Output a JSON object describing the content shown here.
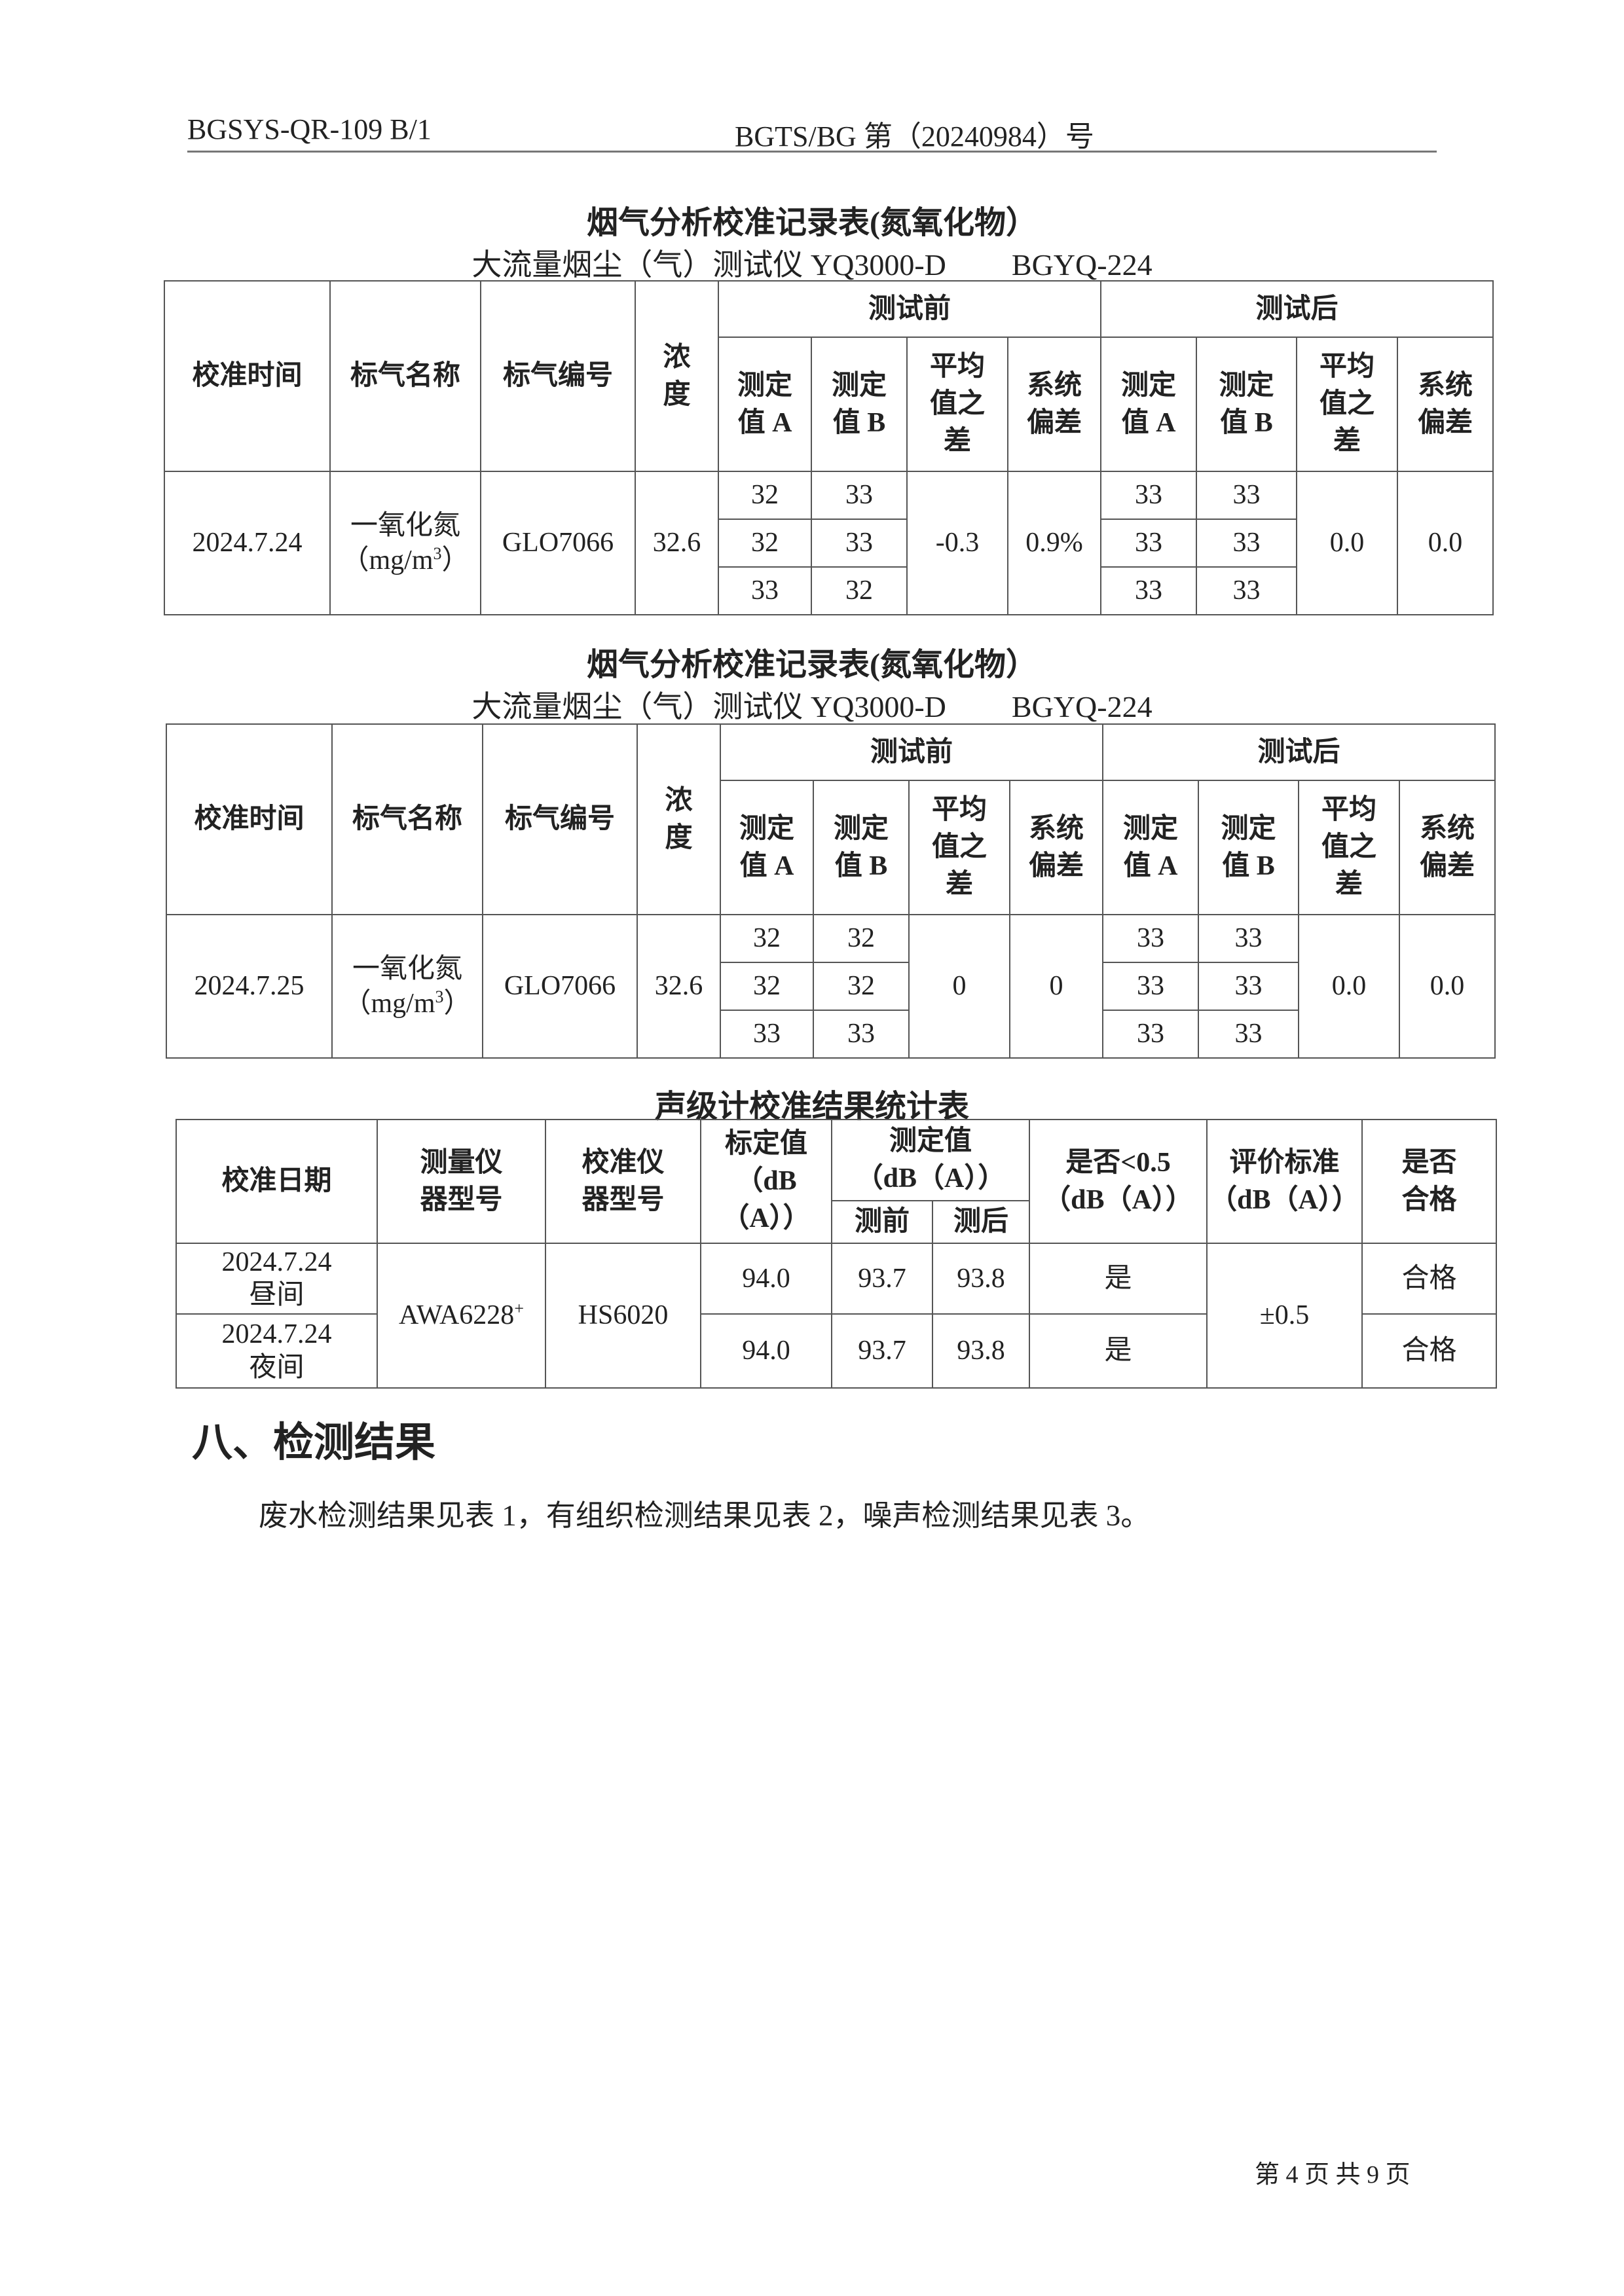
{
  "header": {
    "form_code": "BGSYS-QR-109 B/1",
    "report_no": "BGTS/BG 第（20240984）号"
  },
  "calibration_tables": [
    {
      "title": "烟气分析校准记录表(氮氧化物）",
      "instrument": "大流量烟尘（气）测试仪 YQ3000-D",
      "instrument_id": "BGYQ-224",
      "headers": {
        "time": "校准时间",
        "gas_name": "标气名称",
        "gas_code": "标气编号",
        "conc": "浓\n度",
        "before": "测试前",
        "after": "测试后",
        "a": "测定\n值 A",
        "b": "测定\n值 B",
        "avg_diff": "平均\n值之\n差",
        "bias": "系统\n偏差"
      },
      "row": {
        "date": "2024.7.24",
        "gas_name": "一氧化氮",
        "gas_unit": "（mg/m",
        "unit_sup": "3",
        "unit_close": "）",
        "gas_code": "GLO7066",
        "conc": "32.6",
        "before_a": [
          "32",
          "32",
          "33"
        ],
        "before_b": [
          "33",
          "33",
          "32"
        ],
        "before_avg_diff": "-0.3",
        "before_bias": "0.9%",
        "after_a": [
          "33",
          "33",
          "33"
        ],
        "after_b": [
          "33",
          "33",
          "33"
        ],
        "after_avg_diff": "0.0",
        "after_bias": "0.0"
      }
    },
    {
      "title": "烟气分析校准记录表(氮氧化物）",
      "instrument": "大流量烟尘（气）测试仪 YQ3000-D",
      "instrument_id": "BGYQ-224",
      "headers": {
        "time": "校准时间",
        "gas_name": "标气名称",
        "gas_code": "标气编号",
        "conc": "浓\n度",
        "before": "测试前",
        "after": "测试后",
        "a": "测定\n值 A",
        "b": "测定\n值 B",
        "avg_diff": "平均\n值之\n差",
        "bias": "系统\n偏差"
      },
      "row": {
        "date": "2024.7.25",
        "gas_name": "一氧化氮",
        "gas_unit": "（mg/m",
        "unit_sup": "3",
        "unit_close": "）",
        "gas_code": "GLO7066",
        "conc": "32.6",
        "before_a": [
          "32",
          "32",
          "33"
        ],
        "before_b": [
          "32",
          "32",
          "33"
        ],
        "before_avg_diff": "0",
        "before_bias": "0",
        "after_a": [
          "33",
          "33",
          "33"
        ],
        "after_b": [
          "33",
          "33",
          "33"
        ],
        "after_avg_diff": "0.0",
        "after_bias": "0.0"
      }
    }
  ],
  "sound_table": {
    "title": "声级计校准结果统计表",
    "headers": {
      "date": "校准日期",
      "meter_model": "测量仪\n器型号",
      "calibrator_model": "校准仪\n器型号",
      "nominal": "标定值\n（dB\n（A））",
      "measured": "测定值\n（dB（A））",
      "before": "测前",
      "after": "测后",
      "within": "是否<0.5\n（dB（A））",
      "criterion": "评价标准\n（dB（A））",
      "pass": "是否\n合格"
    },
    "meter_model": "AWA6228",
    "meter_sup": "+",
    "calibrator_model": "HS6020",
    "criterion": "±0.5",
    "rows": [
      {
        "date": "2024.7.24\n昼间",
        "nominal": "94.0",
        "before": "93.7",
        "after": "93.8",
        "within": "是",
        "pass": "合格"
      },
      {
        "date": "2024.7.24\n夜间",
        "nominal": "94.0",
        "before": "93.7",
        "after": "93.8",
        "within": "是",
        "pass": "合格"
      }
    ]
  },
  "section": {
    "heading": "八、检测结果",
    "text": "废水检测结果见表 1，有组织检测结果见表 2，噪声检测结果见表 3。"
  },
  "footer": {
    "page": "第 4 页 共 9 页"
  }
}
